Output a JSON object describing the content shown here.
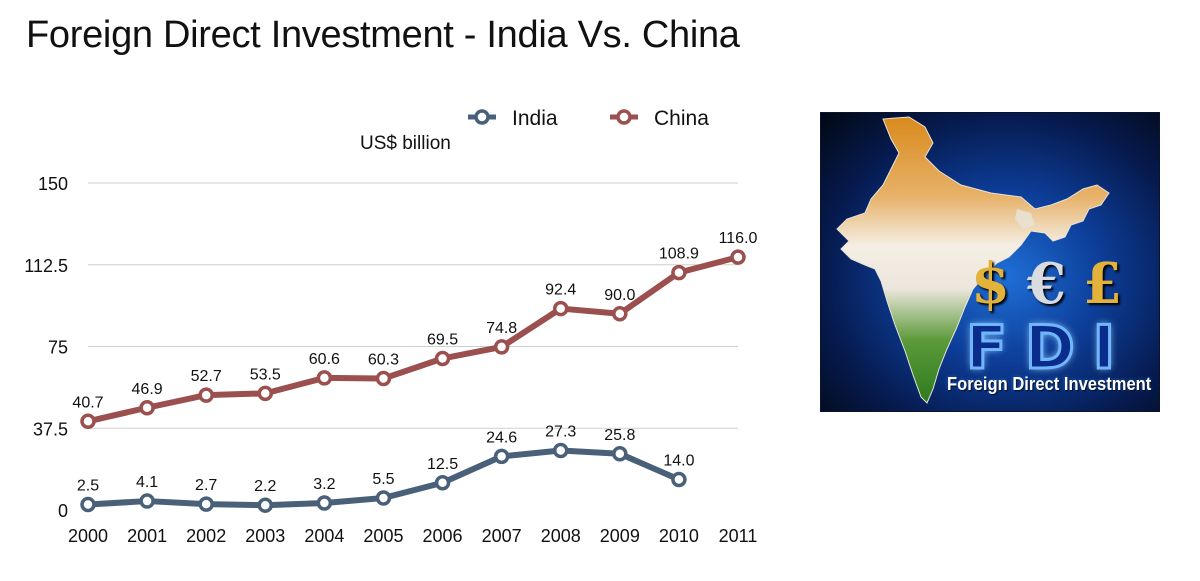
{
  "title": "Foreign Direct Investment - India Vs. China",
  "unit_label": "US$ billion",
  "chart_data": {
    "type": "line",
    "x": [
      "2000",
      "2001",
      "2002",
      "2003",
      "2004",
      "2005",
      "2006",
      "2007",
      "2008",
      "2009",
      "2010",
      "2011"
    ],
    "ylim": [
      0,
      150
    ],
    "yticks": [
      "0",
      "37.5",
      "75",
      "112.5",
      "150"
    ],
    "grid": true,
    "legend_position": "top",
    "series": [
      {
        "name": "India",
        "color": "#4a6079",
        "values": [
          2.5,
          4.1,
          2.7,
          2.2,
          3.2,
          5.5,
          12.5,
          24.6,
          27.3,
          25.8,
          14.0,
          null
        ],
        "labels": [
          "2.5",
          "4.1",
          "2.7",
          "2.2",
          "3.2",
          "5.5",
          "12.5",
          "24.6",
          "27.3",
          "25.8",
          "14.0",
          null
        ]
      },
      {
        "name": "China",
        "color": "#9b4f4f",
        "values": [
          40.7,
          46.9,
          52.7,
          53.5,
          60.6,
          60.3,
          69.5,
          74.8,
          92.4,
          90.0,
          108.9,
          116.0
        ],
        "labels": [
          "40.7",
          "46.9",
          "52.7",
          "53.5",
          "60.6",
          "60.3",
          "69.5",
          "74.8",
          "92.4",
          "90.0",
          "108.9",
          "116.0"
        ]
      }
    ]
  },
  "fdi_logo": {
    "currency_symbols": [
      "$",
      "€",
      "£"
    ],
    "heading": "FDI",
    "subtitle": "Foreign Direct Investment"
  }
}
